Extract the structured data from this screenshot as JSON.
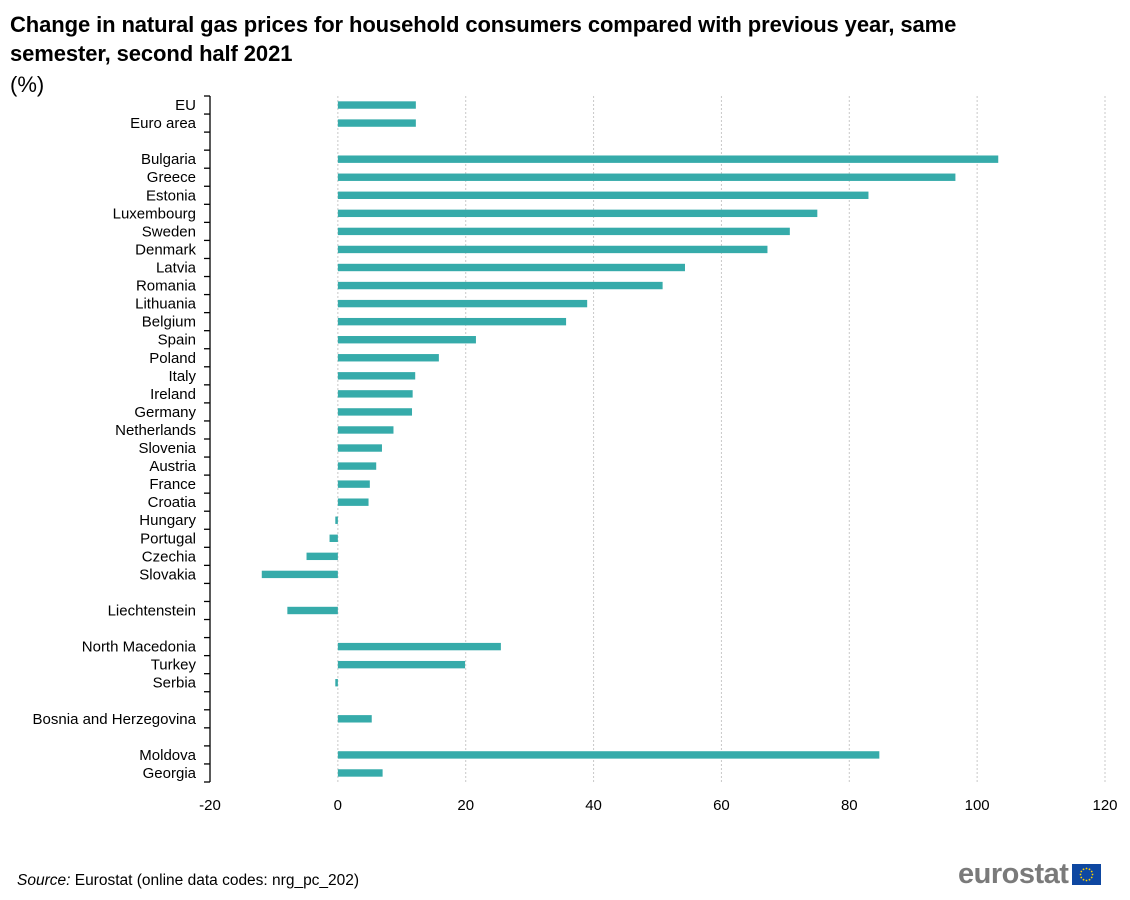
{
  "header": {
    "title": "Change in natural gas prices for household consumers compared with previous year, same semester, second half 2021",
    "unit": "(%)"
  },
  "footer": {
    "source_label": "Source:",
    "source_text": " Eurostat (online data codes: nrg_pc_202)",
    "logo_text": "eurostat",
    "logo_flag_icon": "eu-flag-icon"
  },
  "colors": {
    "bar": "#36abaa",
    "grid": "#c8c8c8",
    "axis": "#000000",
    "logo_text": "#7a7a7a",
    "flag_blue": "#0e47a1",
    "flag_stars": "#ffd200"
  },
  "chart_data": {
    "type": "bar",
    "orientation": "horizontal",
    "title": "Change in natural gas prices for household consumers compared with previous year, same semester, second half 2021",
    "xlabel": "",
    "ylabel": "",
    "unit": "%",
    "xlim": [
      -20,
      120
    ],
    "xticks": [
      -20,
      0,
      20,
      40,
      60,
      80,
      100,
      120
    ],
    "grid": "vertical-dotted",
    "legend": "none",
    "categories": [
      "EU",
      "Euro area",
      "",
      "Bulgaria",
      "Greece",
      "Estonia",
      "Luxembourg",
      "Sweden",
      "Denmark",
      "Latvia",
      "Romania",
      "Lithuania",
      "Belgium",
      "Spain",
      "Poland",
      "Italy",
      "Ireland",
      "Germany",
      "Netherlands",
      "Slovenia",
      "Austria",
      "France",
      "Croatia",
      "Hungary",
      "Portugal",
      "Czechia",
      "Slovakia",
      "",
      "Liechtenstein",
      "",
      "North Macedonia",
      "Turkey",
      "Serbia",
      "",
      "Bosnia and Herzegovina",
      "",
      "Moldova",
      "Georgia"
    ],
    "values": [
      12.2,
      12.2,
      null,
      103.3,
      96.6,
      83.0,
      75.0,
      70.7,
      67.2,
      54.3,
      50.8,
      39.0,
      35.7,
      21.6,
      15.8,
      12.1,
      11.7,
      11.6,
      8.7,
      6.9,
      6.0,
      5.0,
      4.8,
      -0.4,
      -1.3,
      -4.9,
      -11.9,
      null,
      -7.9,
      null,
      25.5,
      19.9,
      -0.4,
      null,
      5.3,
      null,
      84.7,
      7.0
    ]
  }
}
